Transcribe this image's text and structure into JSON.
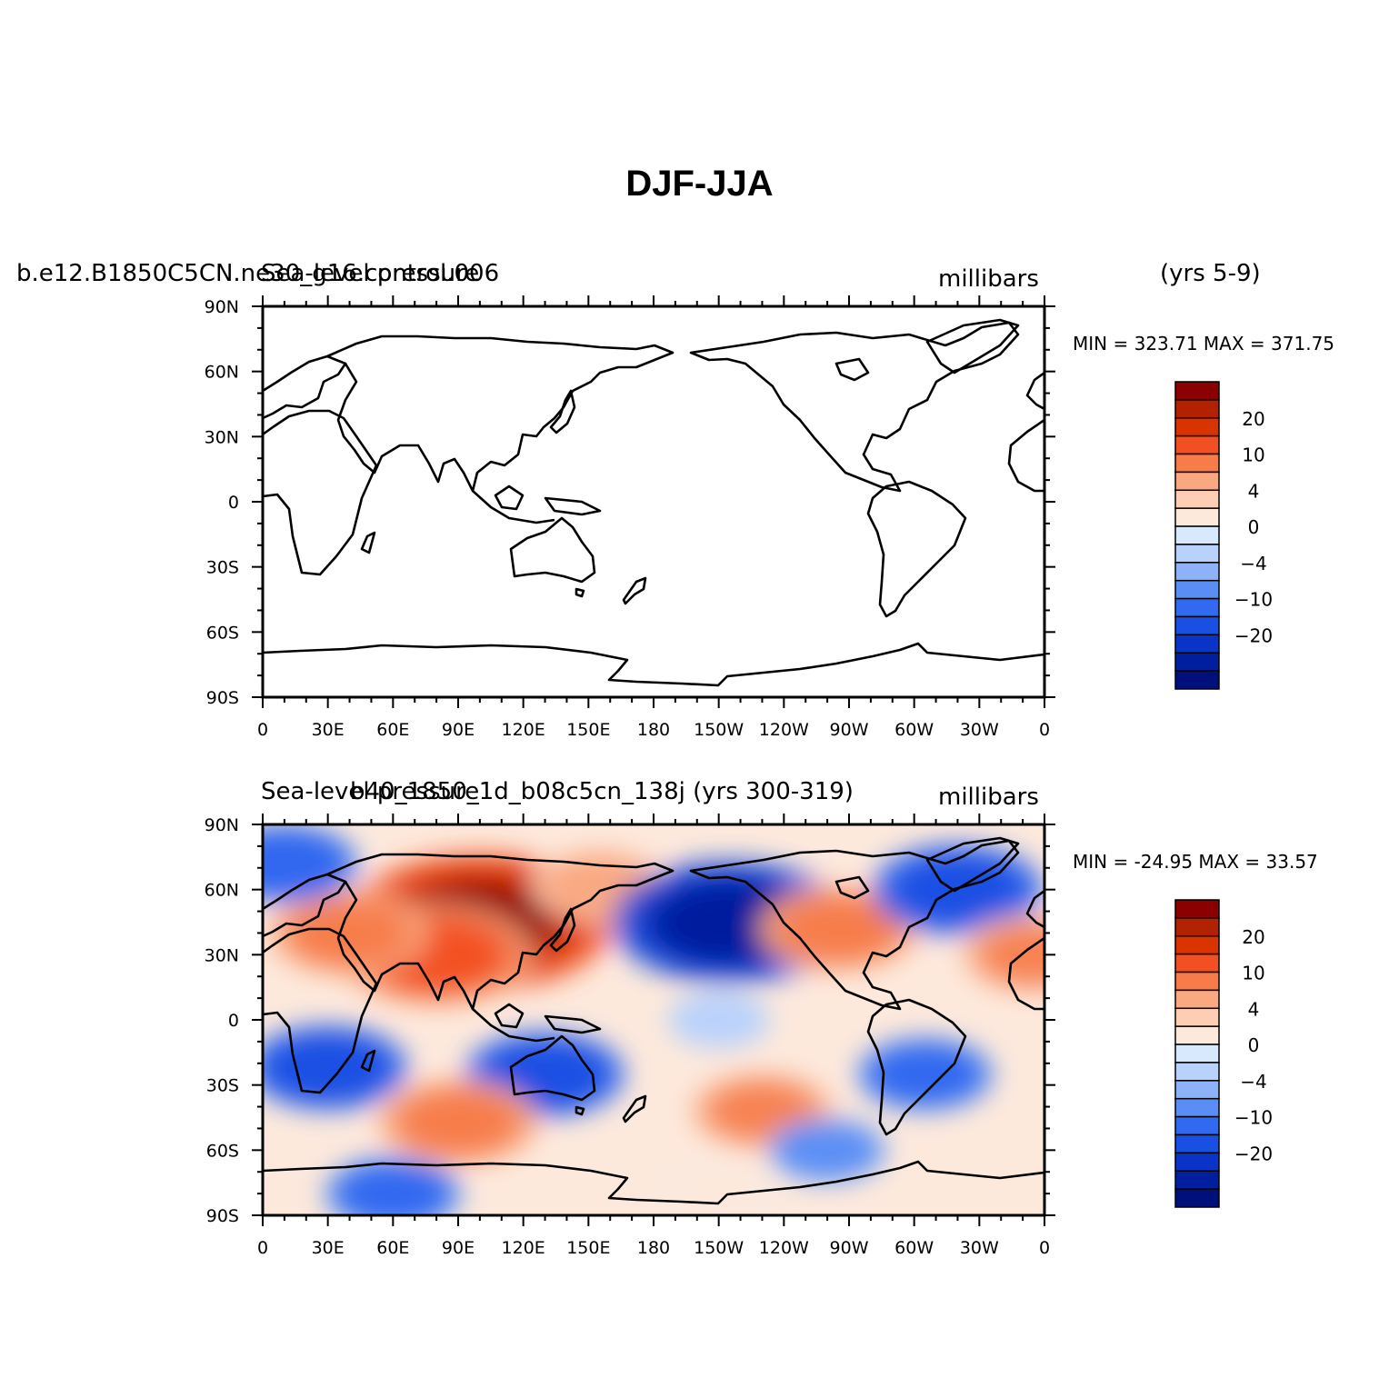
{
  "title": "DJF-JJA",
  "panels": [
    {
      "id": "top",
      "left_label_a": "b.e12.B1850C5CN.ne30_g16.control.006",
      "left_label_b": "Sea-level pressure",
      "units": "millibars",
      "years": "(yrs 5-9)",
      "stats": "MIN = 323.71 MAX = 371.75",
      "filled": false
    },
    {
      "id": "bottom",
      "left_label_a": "Sea-level pressure",
      "left_label_b": "b40_1850_1d_b08c5cn_138j (yrs 300-319)",
      "units": "millibars",
      "years": "",
      "stats": "MIN = -24.95 MAX =  33.57",
      "filled": true
    }
  ],
  "axes": {
    "lat_ticks": [
      "90N",
      "60N",
      "30N",
      "0",
      "30S",
      "60S",
      "90S"
    ],
    "lon_ticks": [
      "0",
      "30E",
      "60E",
      "90E",
      "120E",
      "150E",
      "180",
      "150W",
      "120W",
      "90W",
      "60W",
      "30W",
      "0"
    ]
  },
  "colorbar": {
    "labels": [
      "20",
      "10",
      "4",
      "0",
      "-4",
      "-10",
      "-20"
    ],
    "colors": [
      "#8b0000",
      "#b22200",
      "#d93300",
      "#f25022",
      "#f77c4a",
      "#f9a880",
      "#fdcdb4",
      "#fde9dc",
      "#d9e9fd",
      "#b9d2fb",
      "#8db2f8",
      "#5a8ef5",
      "#3169f0",
      "#1a4fe3",
      "#0a33c7",
      "#001f9e",
      "#00107a"
    ]
  },
  "chart_data": {
    "type": "contour-map",
    "variable": "Sea-level pressure",
    "units": "millibars",
    "season_difference": "DJF-JJA",
    "levels": [
      -25,
      -20,
      -15,
      -10,
      -6,
      -4,
      -2,
      0,
      2,
      4,
      6,
      10,
      15,
      20,
      25,
      30
    ],
    "regions": [
      {
        "lon": 100,
        "lat": 45,
        "value": 30
      },
      {
        "lon": 80,
        "lat": 30,
        "value": 18
      },
      {
        "lon": 40,
        "lat": 40,
        "value": 12
      },
      {
        "lon": 155,
        "lat": 62,
        "value": 8
      },
      {
        "lon": -145,
        "lat": 45,
        "value": -25
      },
      {
        "lon": -95,
        "lat": 42,
        "value": 12
      },
      {
        "lon": -40,
        "lat": 60,
        "value": -14
      },
      {
        "lon": 10,
        "lat": 72,
        "value": -10
      },
      {
        "lon": -5,
        "lat": 30,
        "value": 10
      },
      {
        "lon": 30,
        "lat": -22,
        "value": -12
      },
      {
        "lon": 130,
        "lat": -25,
        "value": -12
      },
      {
        "lon": -55,
        "lat": -25,
        "value": -8
      },
      {
        "lon": 90,
        "lat": -47,
        "value": 12
      },
      {
        "lon": -130,
        "lat": -42,
        "value": 10
      },
      {
        "lon": -100,
        "lat": -60,
        "value": -5
      },
      {
        "lon": -150,
        "lat": 0,
        "value": -2
      },
      {
        "lon": 60,
        "lat": -80,
        "value": -8
      },
      {
        "lon": -150,
        "lat": -80,
        "value": 3
      }
    ]
  }
}
